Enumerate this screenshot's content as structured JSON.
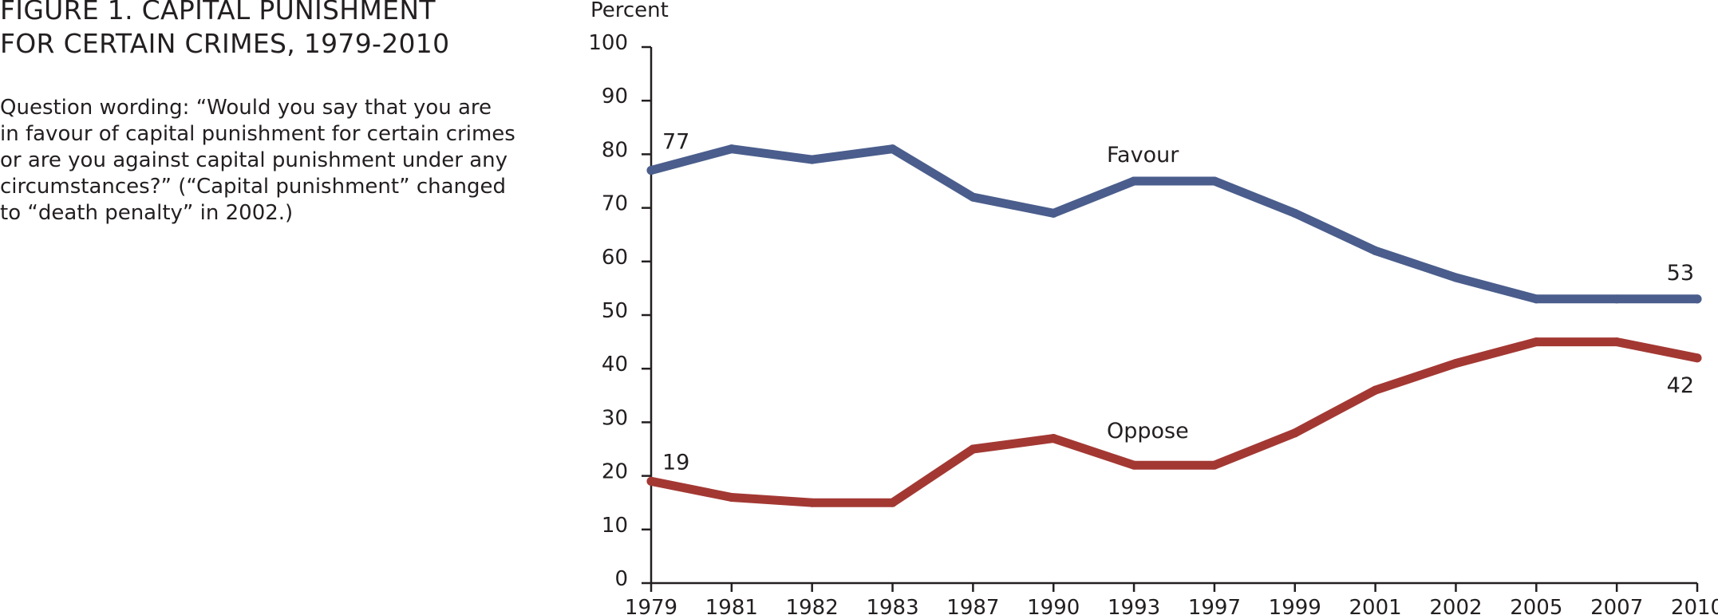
{
  "figure": {
    "title_lines": [
      "FIGURE 1. CAPITAL PUNISHMENT",
      "FOR CERTAIN CRIMES, 1979-2010"
    ],
    "question_lines": [
      "Question wording: “Would you say that you are",
      "in favour of capital punishment for certain crimes",
      "or are you against capital punishment under any",
      "circumstances?” (“Capital punishment” changed",
      "to “death penalty” in 2002.)"
    ]
  },
  "chart_data": {
    "type": "line",
    "title": "FIGURE 1. CAPITAL PUNISHMENT FOR CERTAIN CRIMES, 1979-2010",
    "ylabel": "Percent",
    "xlabel": "",
    "ylim": [
      0,
      100
    ],
    "yticks": [
      0,
      10,
      20,
      30,
      40,
      50,
      60,
      70,
      80,
      90,
      100
    ],
    "grid": false,
    "legend": "inline labels",
    "categories": [
      "1979",
      "1981",
      "1982",
      "1983",
      "1987",
      "1990",
      "1993",
      "1997",
      "1999",
      "2001",
      "2002",
      "2005",
      "2007",
      "2010"
    ],
    "series": [
      {
        "name": "Favour",
        "color": "#4a5d8c",
        "values": [
          77,
          81,
          79,
          81,
          72,
          69,
          75,
          75,
          69,
          62,
          57,
          53,
          53,
          53
        ],
        "start_label": "77",
        "end_label": "53"
      },
      {
        "name": "Oppose",
        "color": "#a33833",
        "values": [
          19,
          16,
          15,
          15,
          25,
          27,
          22,
          22,
          28,
          36,
          41,
          45,
          45,
          42
        ],
        "start_label": "19",
        "end_label": "42"
      }
    ]
  }
}
